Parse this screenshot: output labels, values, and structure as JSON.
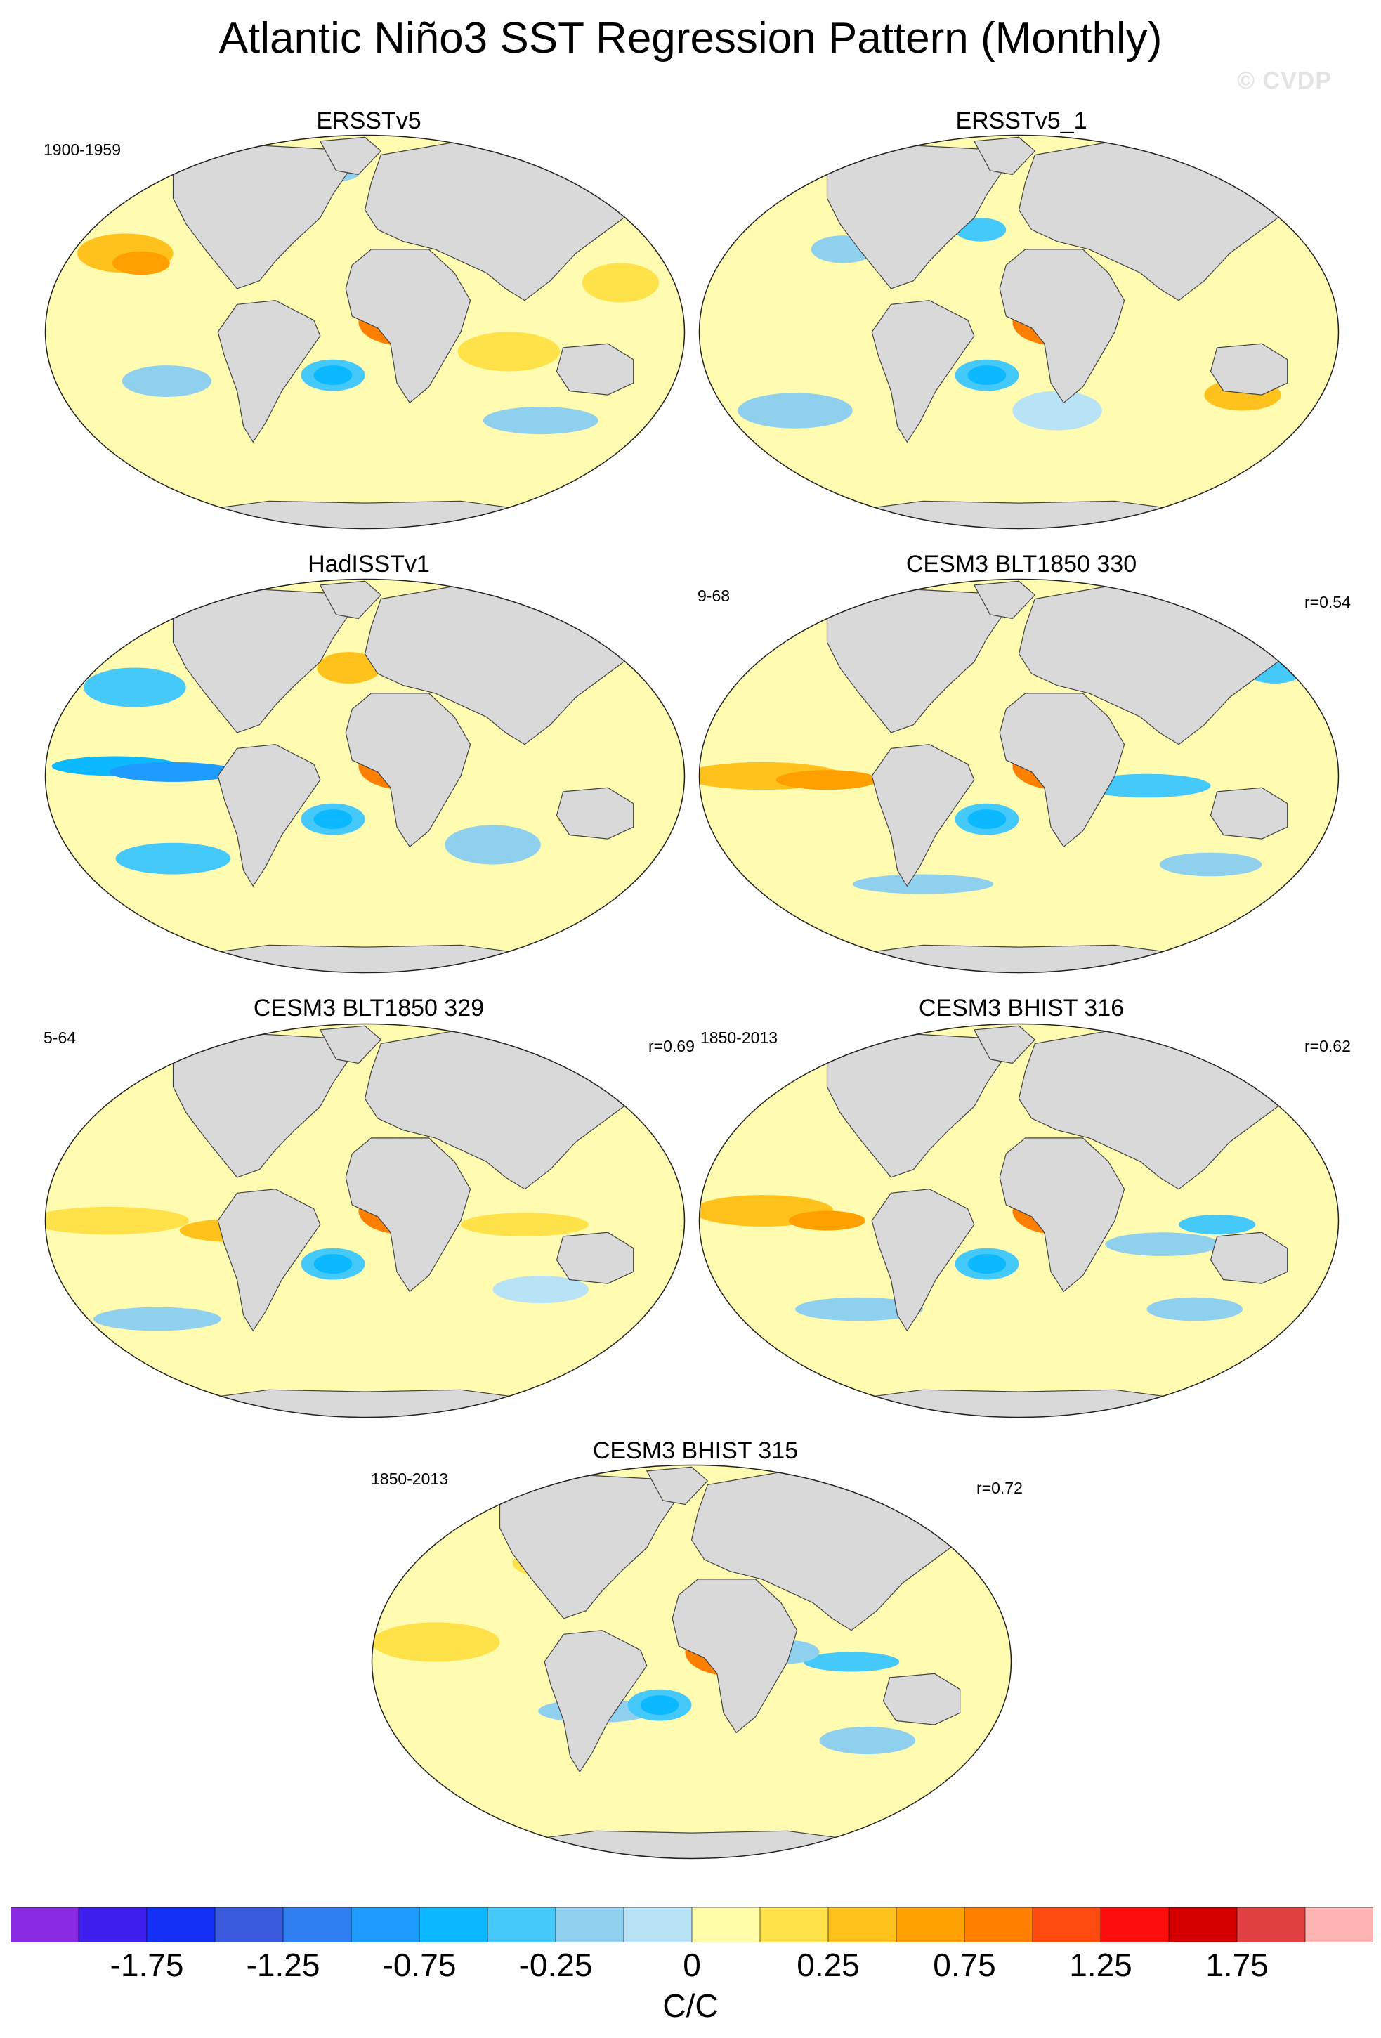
{
  "title": "Atlantic Niño3 SST Regression Pattern (Monthly)",
  "watermark": "© CVDP",
  "panels": [
    {
      "title": "ERSSTv5",
      "left_note": "1900-1959",
      "right_note": "",
      "variant": 0
    },
    {
      "title": "ERSSTv5_1",
      "left_note": "",
      "right_note": "",
      "variant": 1
    },
    {
      "title": "HadISSTv1",
      "left_note": "",
      "right_note": "",
      "variant": 2
    },
    {
      "title": "CESM3 BLT1850 330",
      "left_note": "9-68",
      "right_note": "r=0.54",
      "variant": 3
    },
    {
      "title": "CESM3 BLT1850 329",
      "left_note": "5-64",
      "right_note": "r=0.69",
      "variant": 4
    },
    {
      "title": "CESM3 BHIST 316",
      "left_note": "1850-2013",
      "right_note": "r=0.62",
      "variant": 5
    },
    {
      "title": "CESM3 BHIST 315",
      "left_note": "1850-2013",
      "right_note": "r=0.72",
      "variant": 6
    }
  ],
  "colorbar": {
    "units": "C/C",
    "colors": [
      "#8a2be2",
      "#3f1ef0",
      "#1530f5",
      "#3a5cdc",
      "#2f7ff0",
      "#1e9bff",
      "#0cb8ff",
      "#45c8fa",
      "#8fd0ee",
      "#b8e2f5",
      "#fffcaa",
      "#ffe14a",
      "#ffc21c",
      "#ffa000",
      "#ff7f00",
      "#ff4a10",
      "#ff0e0e",
      "#d40000",
      "#e04040",
      "#ffb4b4"
    ],
    "labels": [
      "-1.75",
      "-1.25",
      "-0.75",
      "-0.25",
      "0",
      "0.25",
      "0.75",
      "1.25",
      "1.75"
    ]
  },
  "legend_colors": {
    "land": "#d9d9d9",
    "ocean_background": "#fffbb0"
  }
}
